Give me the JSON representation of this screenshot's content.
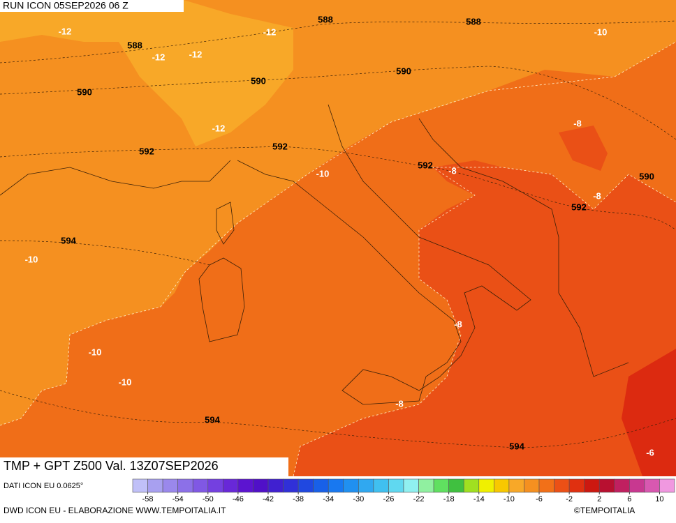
{
  "header": {
    "run": "RUN ICON 05SEP2026 06 Z"
  },
  "map": {
    "title": "TMP + GPT Z500 Val. 13Z07SEP2026",
    "contour_labels": [
      "-12",
      "588",
      "-12",
      "-12",
      "-12",
      "588",
      "588",
      "-10",
      "590",
      "590",
      "590",
      "-12",
      "592",
      "592",
      "-10",
      "592",
      "-8",
      "-8",
      "590",
      "-8",
      "592",
      "594",
      "-10",
      "-10",
      "-10",
      "-8",
      "-8",
      "594",
      "594",
      "-6"
    ]
  },
  "colorbar": {
    "bounds": [
      -60,
      12
    ],
    "colors": [
      "#c0c0f8",
      "#a8a0f0",
      "#9a88ec",
      "#8c70e8",
      "#8058e4",
      "#7440e0",
      "#6828d8",
      "#5c14d0",
      "#5010c8",
      "#4020d0",
      "#3030d8",
      "#2048e0",
      "#1860e8",
      "#1878f0",
      "#2090f0",
      "#30a8f0",
      "#40c0f0",
      "#60d8f0",
      "#90f0f0",
      "#90f0a0",
      "#60e060",
      "#40c040",
      "#a0e020",
      "#f0f000",
      "#f8c800",
      "#f8a828",
      "#f59020",
      "#f27018",
      "#ec5016",
      "#e03010",
      "#cc1810",
      "#b81030",
      "#c02060",
      "#c83890",
      "#d858b0",
      "#f098e0"
    ],
    "ticks": [
      -58,
      -54,
      -50,
      -46,
      -42,
      -38,
      -34,
      -30,
      -26,
      -22,
      -18,
      -14,
      -10,
      -6,
      -2,
      2,
      6,
      10
    ]
  },
  "footer": {
    "source": "DATI ICON EU 0.0625°",
    "credit": "DWD ICON EU - ELABORAZIONE WWW.TEMPOITALIA.IT",
    "copyright": "©TEMPOITALIA"
  }
}
